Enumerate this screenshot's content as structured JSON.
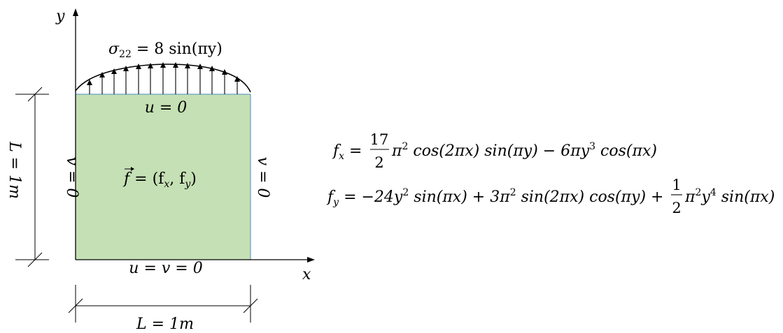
{
  "axes": {
    "x_label": "x",
    "y_label": "y"
  },
  "load": {
    "sigma": "σ",
    "sigma_sub": "22",
    "expr": " = 8 sin(πy)"
  },
  "boundary": {
    "top": "u = 0",
    "bottom": "u = v = 0",
    "left": "v = 0",
    "right": "v = 0"
  },
  "body_force": {
    "f": "f",
    "expr": " = (f",
    "x_sub": "x",
    "comma": ", f",
    "y_sub": "y",
    "close": ")"
  },
  "dimensions": {
    "width": "L = 1m",
    "height": "L = 1m"
  },
  "equations": {
    "fx": {
      "lhs": "f",
      "lhs_sub": "x",
      "eq": " = ",
      "frac_num": "17",
      "frac_den": "2",
      "term1_pi": "π",
      "term1_pow": "2",
      "term1_rest": " cos(2πx) sin(πy) − 6πy",
      "term2_pow": "3",
      "term2_rest": " cos(πx)"
    },
    "fy": {
      "lhs": "f",
      "lhs_sub": "y",
      "part1": " = −24y",
      "pow1": "2",
      "part2": " sin(πx) + 3π",
      "pow2": "2",
      "part3": " sin(2πx) cos(πy) + ",
      "frac_num": "1",
      "frac_den": "2",
      "part4": "π",
      "pow4": "2",
      "part5": "y",
      "pow5": "4",
      "part6": " sin(πx)"
    }
  },
  "colors": {
    "domain_fill": "#c5e0b4",
    "domain_stroke": "#4a8bbf",
    "line": "#000000"
  }
}
